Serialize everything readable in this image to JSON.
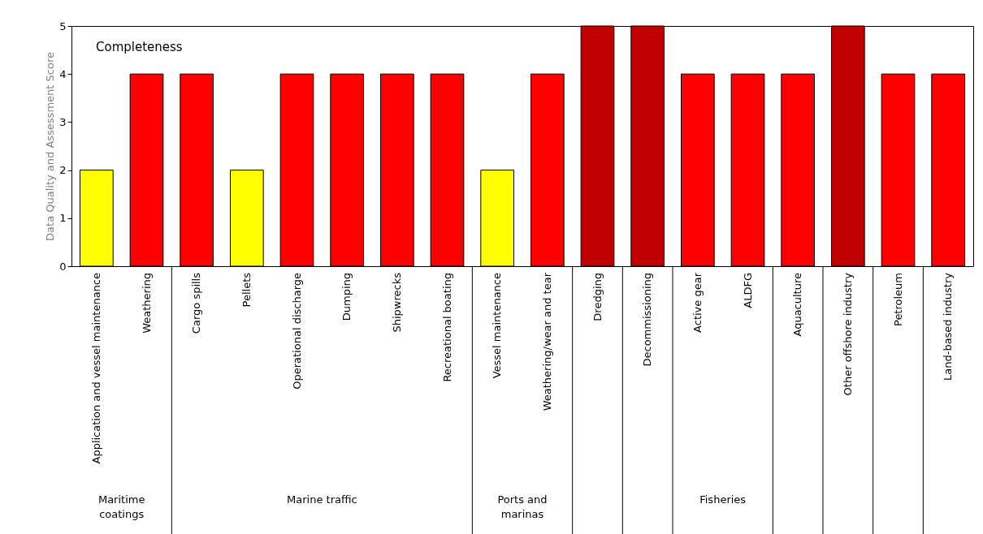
{
  "chart_data": {
    "type": "bar",
    "title": "Completeness",
    "ylabel": "Data Quality and Assessment Score",
    "categories": [
      "Application and vessel maintenance",
      "Weathering",
      "Cargo spills",
      "Pellets",
      "Operational discharge",
      "Dumping",
      "Shipwrecks",
      "Recreational boating",
      "Vessel maintenance",
      "Weathering/wear and tear",
      "Dredging",
      "Decommissioning",
      "Active gear",
      "ALDFG",
      "Aquaculture",
      "Other offshore industry",
      "Petroleum",
      "Land-based industry"
    ],
    "values": [
      2,
      4,
      4,
      2,
      4,
      4,
      4,
      4,
      2,
      4,
      5,
      5,
      4,
      4,
      4,
      5,
      4,
      4
    ],
    "colors": [
      "#ffff00",
      "#ff0000",
      "#ff0000",
      "#ffff00",
      "#ff0000",
      "#ff0000",
      "#ff0000",
      "#ff0000",
      "#ffff00",
      "#ff0000",
      "#c00000",
      "#c00000",
      "#ff0000",
      "#ff0000",
      "#ff0000",
      "#c00000",
      "#ff0000",
      "#ff0000"
    ],
    "ylim": [
      0,
      5
    ],
    "yticks": [
      0,
      1,
      2,
      3,
      4,
      5
    ],
    "grid": false,
    "annotations": [
      "Maritime coatings",
      "Marine traffic",
      "Ports and marinas",
      "Fisheries"
    ]
  }
}
